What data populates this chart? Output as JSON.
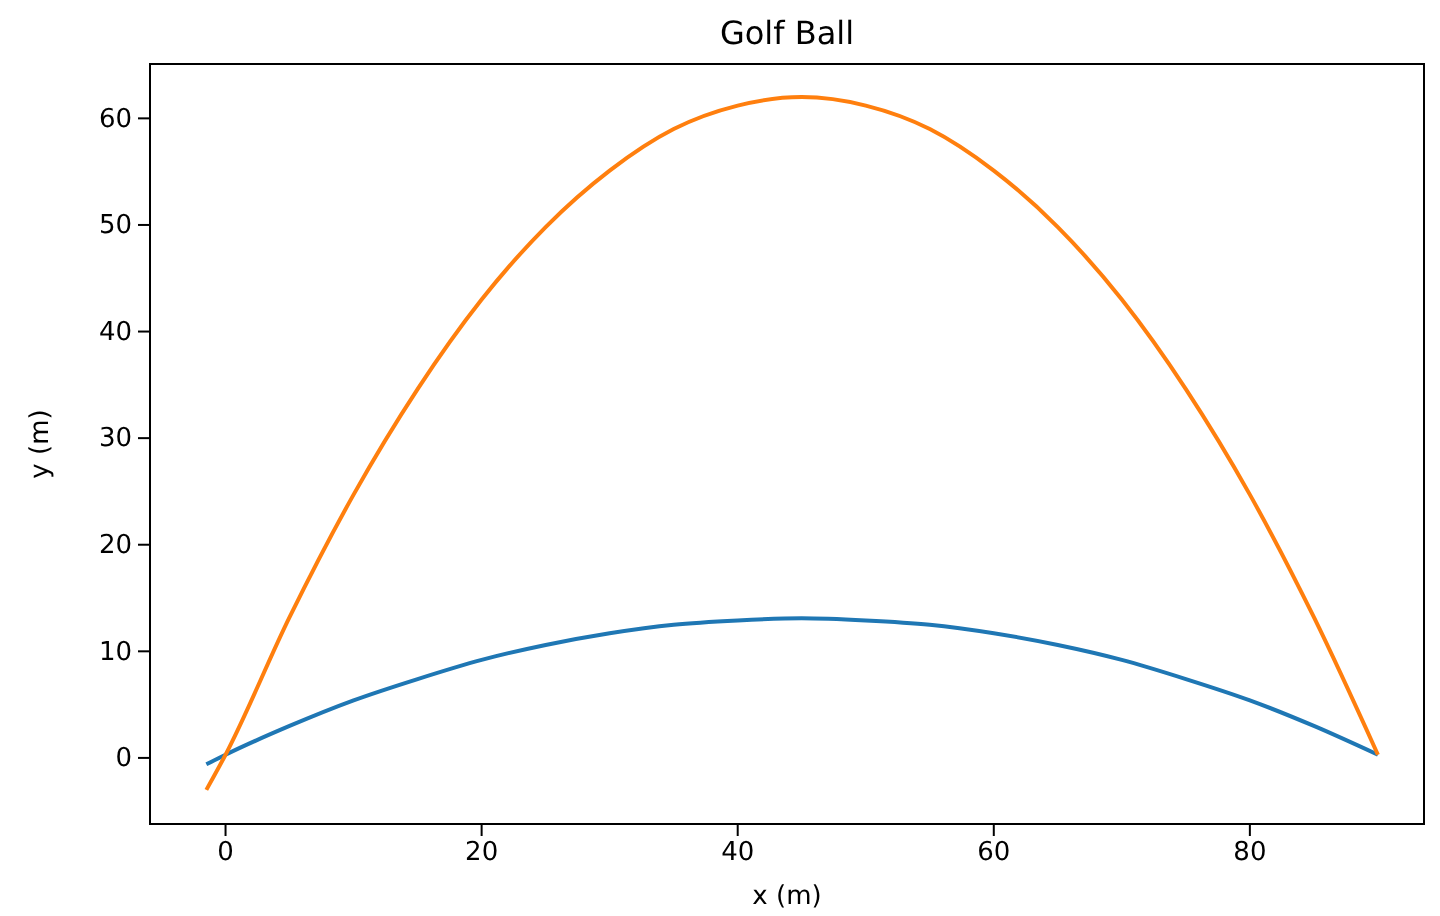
{
  "chart_data": {
    "type": "line",
    "title": "Golf Ball",
    "xlabel": "x (m)",
    "ylabel": "y (m)",
    "xlim": [
      -5.9,
      93.6
    ],
    "ylim": [
      -6.2,
      65.1
    ],
    "xticks": [
      0,
      20,
      40,
      60,
      80
    ],
    "yticks": [
      0,
      10,
      20,
      30,
      40,
      50,
      60
    ],
    "grid": false,
    "series": [
      {
        "color": "#1f77b4",
        "x": [
          -1.5,
          0,
          5,
          10,
          15,
          20,
          25,
          30,
          35,
          40,
          45,
          50,
          55,
          60,
          65,
          70,
          75,
          80,
          85,
          90
        ],
        "values": [
          -0.6,
          0.3,
          3.0,
          5.4,
          7.4,
          9.2,
          10.6,
          11.7,
          12.5,
          12.9,
          13.1,
          12.9,
          12.5,
          11.7,
          10.6,
          9.2,
          7.4,
          5.4,
          3.0,
          0.3
        ]
      },
      {
        "color": "#ff7f0e",
        "x": [
          -1.5,
          0,
          5,
          10,
          15,
          20,
          25,
          30,
          35,
          40,
          45,
          50,
          55,
          60,
          65,
          70,
          75,
          80,
          85,
          90
        ],
        "values": [
          -3.0,
          0.3,
          13.2,
          24.7,
          34.6,
          43.0,
          49.8,
          55.1,
          59.0,
          61.2,
          62,
          61.2,
          59.0,
          55.1,
          49.8,
          43.0,
          34.6,
          24.7,
          13.2,
          0.3
        ]
      }
    ]
  }
}
